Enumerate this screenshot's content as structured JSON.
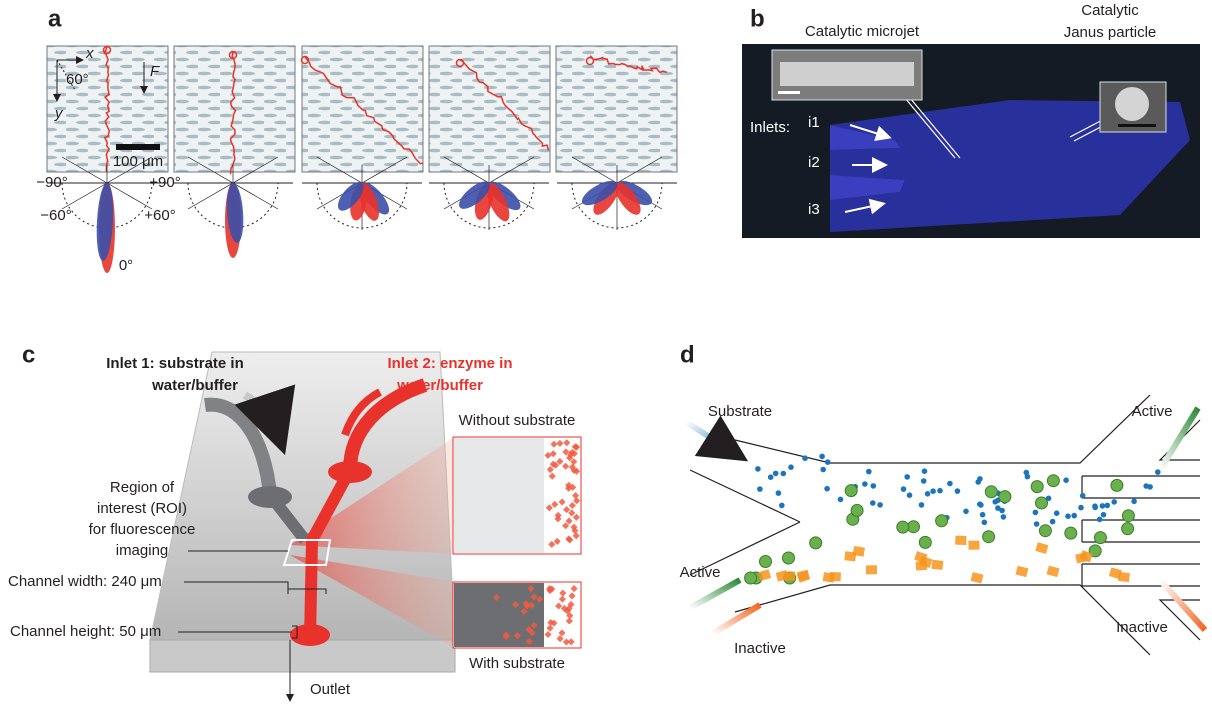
{
  "panels": {
    "a": {
      "label": "a",
      "axis_x": "x",
      "angle": "60°",
      "force": "F",
      "axis_y": "y",
      "scale_bar": "100 μm",
      "polar_labels": [
        "−90°",
        "+90°",
        "−60°",
        "+60°",
        "0°"
      ]
    },
    "b": {
      "label": "b",
      "microjet": "Catalytic microjet",
      "janus": [
        "Catalytic",
        "Janus particle"
      ],
      "inlets_title": "Inlets:",
      "inlets": [
        "i1",
        "i2",
        "i3"
      ]
    },
    "c": {
      "label": "c",
      "inlet1": [
        "Inlet 1: substrate in",
        "water/buffer"
      ],
      "inlet2": [
        "Inlet 2: enzyme in",
        "water/buffer"
      ],
      "roi": [
        "Region of",
        "interest (ROI)",
        "for fluorescence",
        "imaging"
      ],
      "channel_width": "Channel width: 240 μm",
      "channel_height": "Channel height: 50 μm",
      "outlet": "Outlet",
      "without": "Without substrate",
      "with": "With substrate"
    },
    "d": {
      "label": "d",
      "substrate": "Substrate",
      "active_in": "Active",
      "inactive_in": "Inactive",
      "active_out": "Active",
      "inactive_out": "Inactive"
    }
  }
}
